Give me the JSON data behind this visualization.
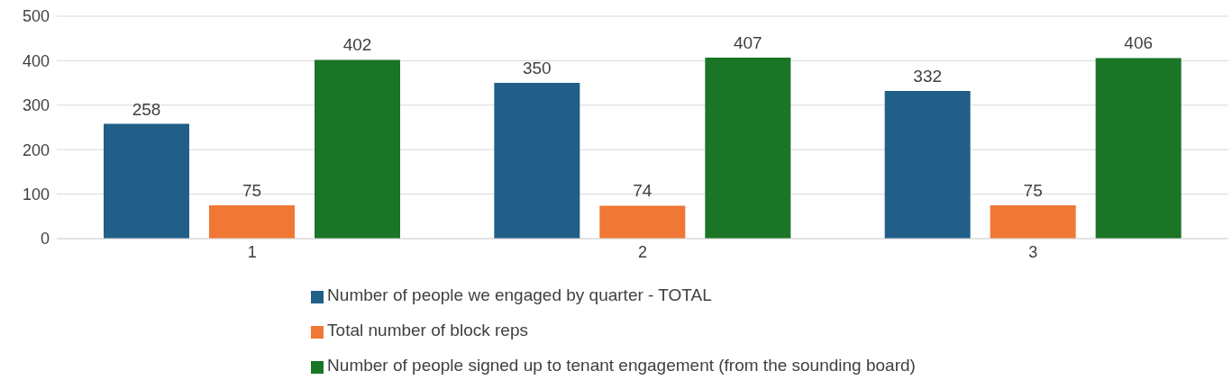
{
  "chart_data": {
    "type": "bar",
    "categories": [
      "1",
      "2",
      "3"
    ],
    "series": [
      {
        "name": "Number of people we engaged by quarter - TOTAL",
        "color": "#215f89",
        "values": [
          258,
          350,
          332
        ]
      },
      {
        "name": "Total number of block reps",
        "color": "#f07834",
        "values": [
          75,
          74,
          75
        ]
      },
      {
        "name": "Number of people signed up to tenant engagement (from the sounding board)",
        "color": "#1a7526",
        "values": [
          402,
          407,
          406
        ]
      }
    ],
    "ylim": [
      0,
      500
    ],
    "yticks": [
      0,
      100,
      200,
      300,
      400,
      500
    ],
    "grid": "y",
    "legend": "bottom",
    "data_labels": true
  }
}
